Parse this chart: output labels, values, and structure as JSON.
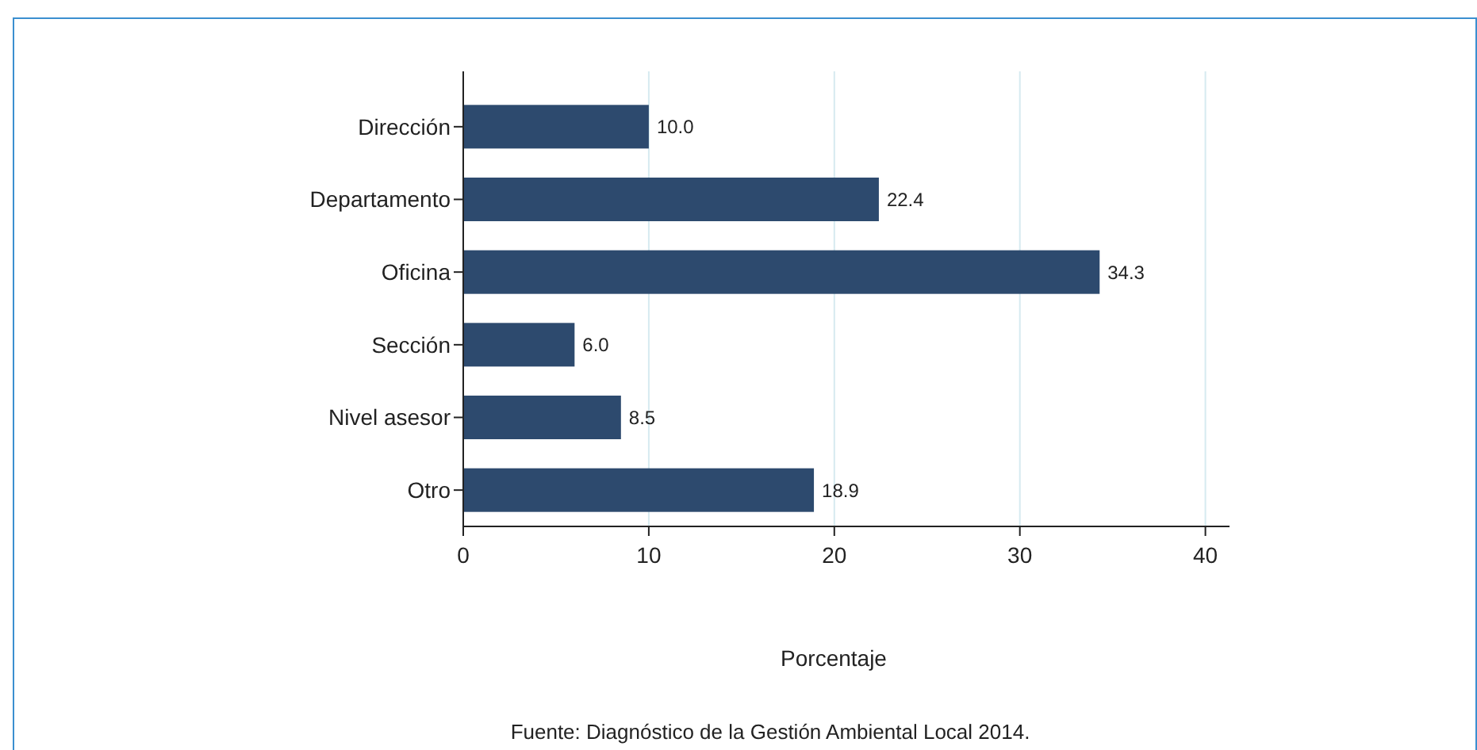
{
  "chart_data": {
    "type": "bar",
    "orientation": "horizontal",
    "categories": [
      "Dirección",
      "Departamento",
      "Oficina",
      "Sección",
      "Nivel asesor",
      "Otro"
    ],
    "values": [
      10.0,
      22.4,
      34.3,
      6.0,
      8.5,
      18.9
    ],
    "color": "#2d4a6e",
    "xlim": [
      0,
      41.3
    ],
    "xticks": [
      0,
      10,
      20,
      30,
      40
    ],
    "value_labels": [
      "10.0",
      "22.4",
      "34.3",
      "6.0",
      "8.5",
      "18.9"
    ],
    "xlabel": "Porcentaje",
    "grid": "x",
    "annotations": [
      "Fuente: Diagnóstico de la Gestión Ambiental Local 2014."
    ]
  }
}
